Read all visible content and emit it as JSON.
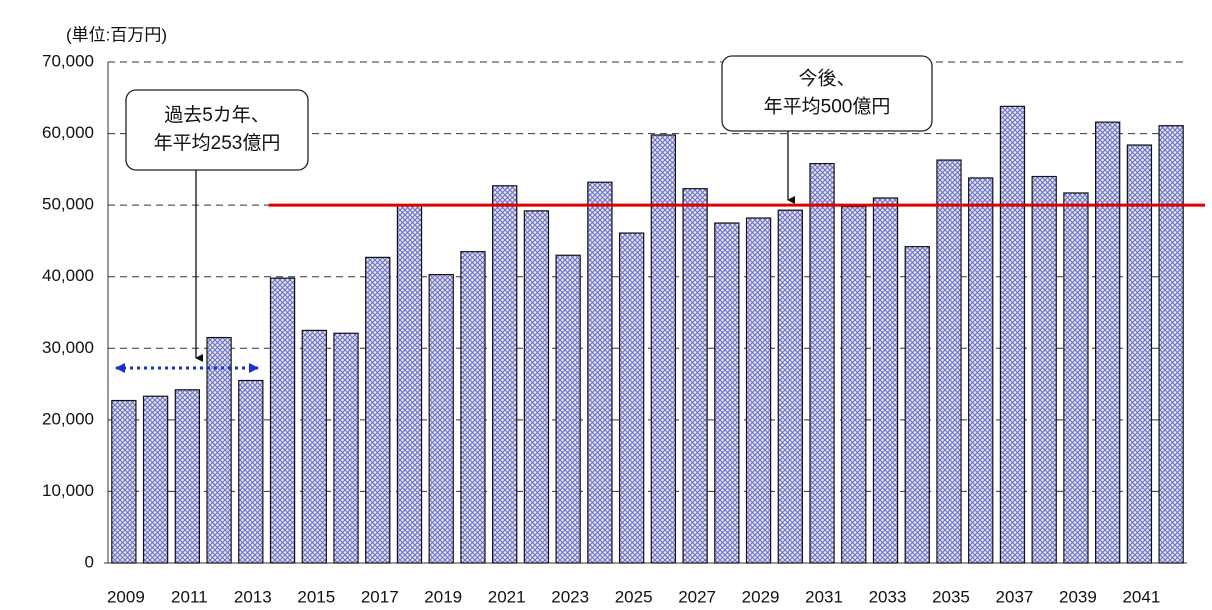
{
  "chart_data": {
    "type": "bar",
    "unit_label": "(単位:百万円)",
    "categories": [
      "2009",
      null,
      "2011",
      null,
      "2013",
      null,
      "2015",
      null,
      "2017",
      null,
      "2019",
      null,
      "2021",
      null,
      "2023",
      null,
      "2025",
      null,
      "2027",
      null,
      "2029",
      null,
      "2031",
      null,
      "2033",
      null,
      "2035",
      null,
      "2037",
      null,
      "2039",
      null,
      "2041",
      null
    ],
    "values": [
      22700,
      23300,
      24200,
      31500,
      25500,
      39800,
      32500,
      32100,
      42700,
      50000,
      40300,
      43500,
      52700,
      49200,
      43000,
      53200,
      46100,
      59800,
      52300,
      47500,
      48200,
      49300,
      55800,
      49800,
      51000,
      44200,
      56300,
      53800,
      63800,
      54000,
      51700,
      61600,
      58400,
      61100
    ],
    "color": "#7a80c8",
    "ylim": [
      0,
      70000
    ],
    "yticks": [
      {
        "value": 0,
        "label": "0"
      },
      {
        "value": 10000,
        "label": "10,000"
      },
      {
        "value": 20000,
        "label": "20,000"
      },
      {
        "value": 30000,
        "label": "30,000"
      },
      {
        "value": 40000,
        "label": "40,000"
      },
      {
        "value": 50000,
        "label": "50,000"
      },
      {
        "value": 60000,
        "label": "60,000"
      },
      {
        "value": 70000,
        "label": "70,000"
      }
    ],
    "grid": true,
    "reference_line": {
      "value": 50000,
      "color": "#e00000"
    },
    "annotations": [
      {
        "lines": [
          "過去5カ年、",
          "年平均253億円"
        ]
      },
      {
        "lines": [
          "今後、",
          "年平均500億円"
        ]
      }
    ]
  }
}
